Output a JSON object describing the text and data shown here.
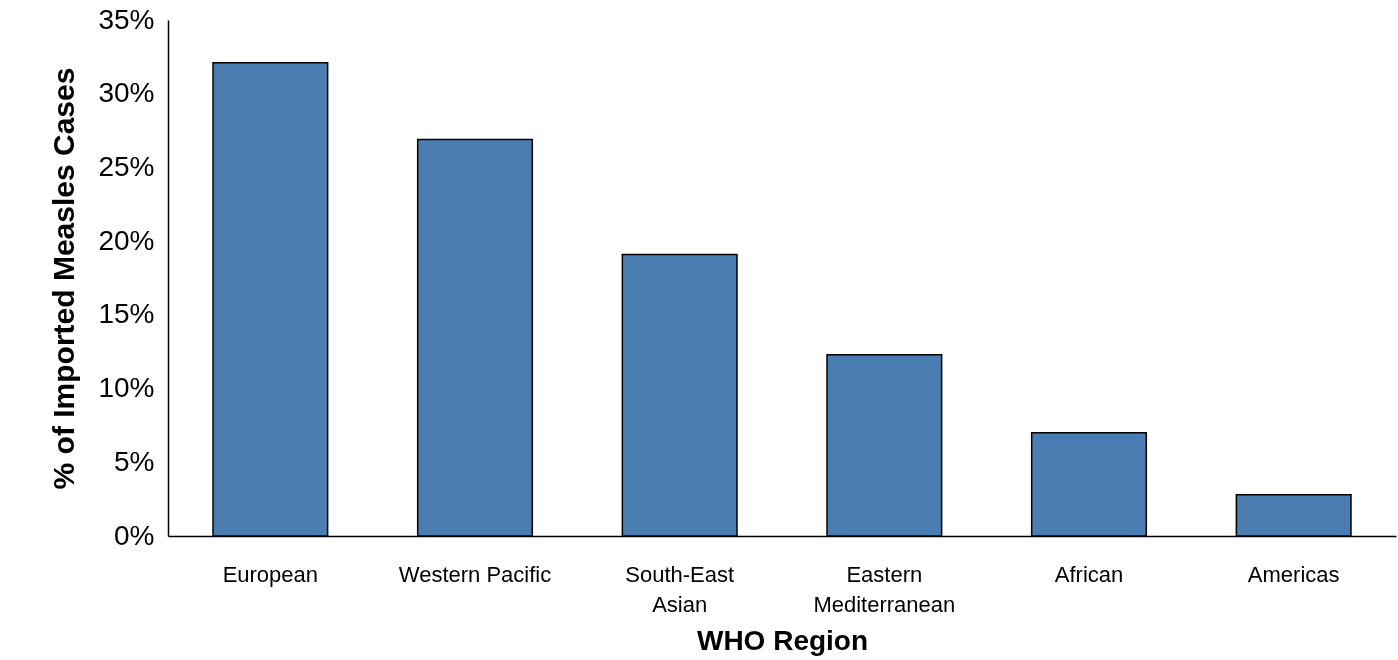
{
  "chart_data": {
    "type": "bar",
    "xlabel": "WHO Region",
    "ylabel": "% of Imported Measles Cases",
    "categories": [
      "European",
      "Western Pacific",
      "South-East Asian",
      "Eastern Mediterranean",
      "African",
      "Americas"
    ],
    "values": [
      32.1,
      26.9,
      19.1,
      12.3,
      7.0,
      2.8
    ],
    "color": "#4a7eb3",
    "ylim": [
      0,
      35
    ],
    "yticks": [
      {
        "value": 0,
        "label": "0%"
      },
      {
        "value": 5,
        "label": "5%"
      },
      {
        "value": 10,
        "label": "10%"
      },
      {
        "value": 15,
        "label": "15%"
      },
      {
        "value": 20,
        "label": "20%"
      },
      {
        "value": 25,
        "label": "25%"
      },
      {
        "value": 30,
        "label": "30%"
      },
      {
        "value": 35,
        "label": "35%"
      }
    ],
    "grid": false
  }
}
